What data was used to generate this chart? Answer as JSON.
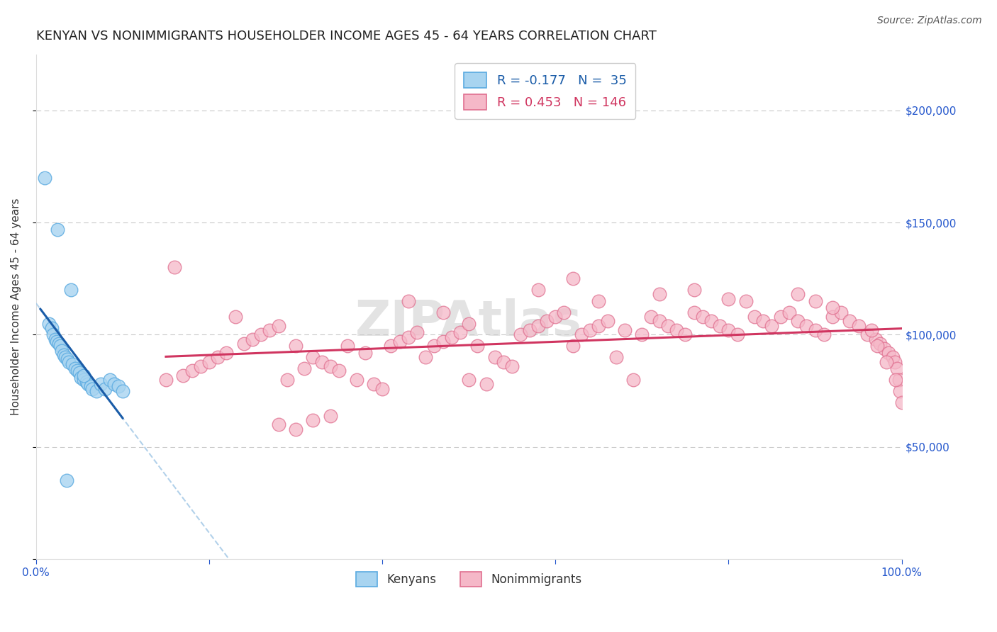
{
  "title": "KENYAN VS NONIMMIGRANTS HOUSEHOLDER INCOME AGES 45 - 64 YEARS CORRELATION CHART",
  "source": "Source: ZipAtlas.com",
  "ylabel": "Householder Income Ages 45 - 64 years",
  "xlim": [
    0.0,
    100.0
  ],
  "ylim": [
    0,
    225000
  ],
  "yticks": [
    0,
    50000,
    100000,
    150000,
    200000
  ],
  "ytick_labels": [
    "",
    "$50,000",
    "$100,000",
    "$150,000",
    "$200,000"
  ],
  "kenyan_R": -0.177,
  "kenyan_N": 35,
  "nonimm_R": 0.453,
  "nonimm_N": 146,
  "kenyan_color": "#A8D4F0",
  "kenyan_edge_color": "#5AAAE0",
  "nonimm_color": "#F5B8C8",
  "nonimm_edge_color": "#E07090",
  "kenyan_line_color": "#1A5CA8",
  "nonimm_line_color": "#D03560",
  "kenyan_line_dashed_color": "#AACCE8",
  "bg_color": "#FFFFFF",
  "grid_color": "#BBBBBB",
  "title_fontsize": 13,
  "axis_label_fontsize": 11,
  "tick_fontsize": 11,
  "legend_fontsize": 12,
  "source_fontsize": 10
}
